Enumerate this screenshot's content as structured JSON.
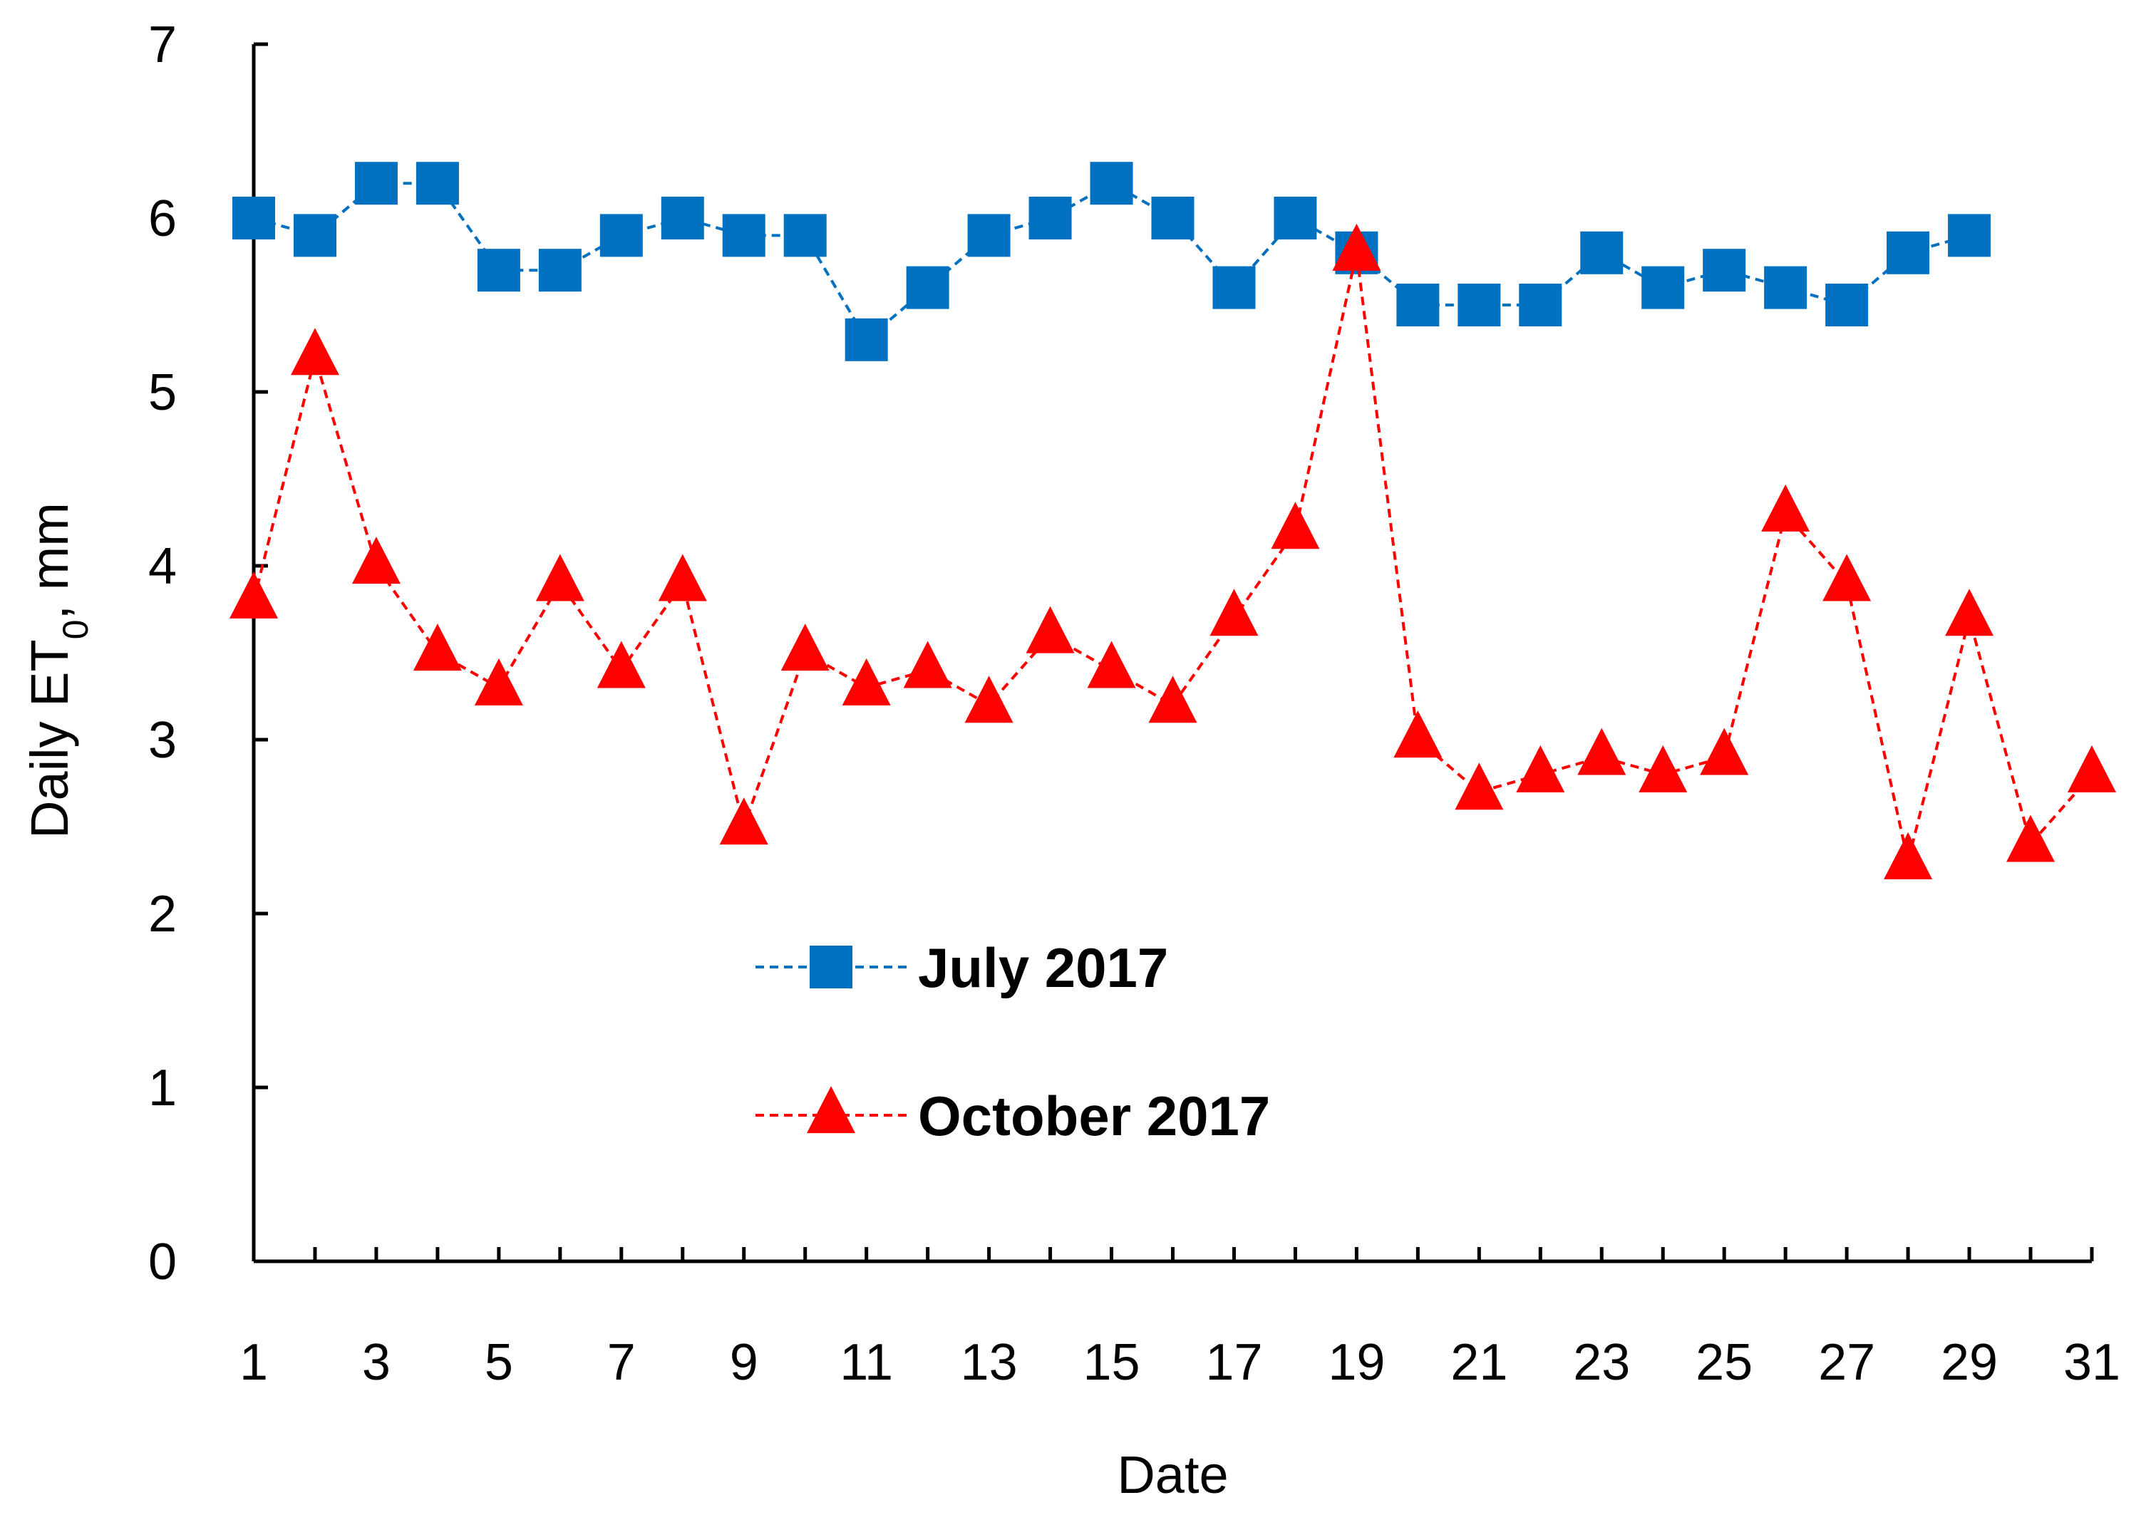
{
  "chart_data": {
    "type": "line",
    "xlabel": "Date",
    "ylabel": "Daily ET",
    "ylabel_subscript": "0",
    "ylabel_suffix": ", mm",
    "xlim": [
      1,
      31
    ],
    "ylim": [
      0,
      7
    ],
    "x_ticks": [
      1,
      3,
      5,
      7,
      9,
      11,
      13,
      15,
      17,
      19,
      21,
      23,
      25,
      27,
      29,
      31
    ],
    "y_ticks": [
      0,
      1,
      2,
      3,
      4,
      5,
      6,
      7
    ],
    "grid": false,
    "legend_position": "lower-center",
    "series": [
      {
        "name": "July 2017",
        "color": "#0070C0",
        "marker": "square",
        "line_style": "dashed",
        "x": [
          1,
          2,
          3,
          4,
          5,
          6,
          7,
          8,
          9,
          10,
          11,
          12,
          13,
          14,
          15,
          16,
          17,
          18,
          19,
          20,
          21,
          22,
          23,
          24,
          25,
          26,
          27,
          28,
          29
        ],
        "values": [
          6.0,
          5.9,
          6.2,
          6.2,
          5.7,
          5.7,
          5.9,
          6.0,
          5.9,
          5.9,
          5.3,
          5.6,
          5.9,
          6.0,
          6.2,
          6.0,
          5.6,
          6.0,
          5.8,
          5.5,
          5.5,
          5.5,
          5.8,
          5.6,
          5.7,
          5.6,
          5.5,
          5.8,
          5.9
        ]
      },
      {
        "name": "October 2017",
        "color": "#FF0000",
        "marker": "triangle",
        "line_style": "dashed",
        "x": [
          1,
          2,
          3,
          4,
          5,
          6,
          7,
          8,
          9,
          10,
          11,
          12,
          13,
          14,
          15,
          16,
          17,
          18,
          19,
          20,
          21,
          22,
          23,
          24,
          25,
          26,
          27,
          28,
          29,
          30,
          31
        ],
        "values": [
          3.8,
          5.2,
          4.0,
          3.5,
          3.3,
          3.9,
          3.4,
          3.9,
          2.5,
          3.5,
          3.3,
          3.4,
          3.2,
          3.6,
          3.4,
          3.2,
          3.7,
          4.2,
          5.8,
          3.0,
          2.7,
          2.8,
          2.9,
          2.8,
          2.9,
          4.3,
          3.9,
          2.3,
          3.7,
          2.4,
          2.8
        ]
      }
    ]
  }
}
